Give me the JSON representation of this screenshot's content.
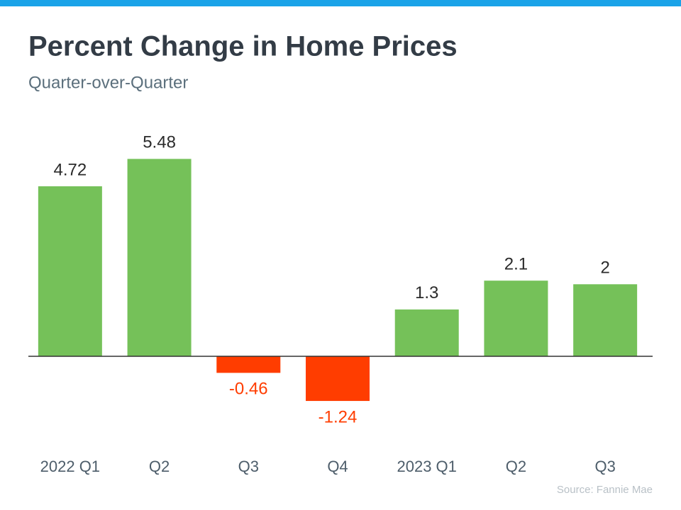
{
  "chart_data": {
    "type": "bar",
    "title": "Percent Change in Home Prices",
    "subtitle": "Quarter-over-Quarter",
    "categories": [
      "2022 Q1",
      "Q2",
      "Q3",
      "Q4",
      "2023 Q1",
      "Q2",
      "Q3"
    ],
    "values": [
      4.72,
      5.48,
      -0.46,
      -1.24,
      1.3,
      2.1,
      2
    ],
    "color": "#75c159",
    "negative_color": "#ff3d00",
    "source": "Source: Fannie Mae"
  }
}
